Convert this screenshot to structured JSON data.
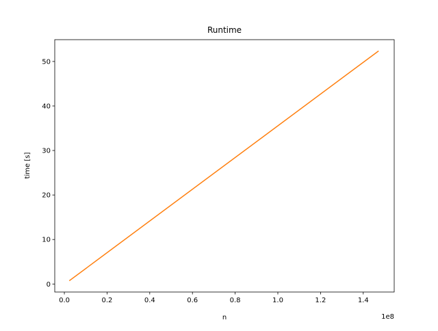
{
  "chart_data": {
    "type": "line",
    "title": "Runtime",
    "xlabel": "n",
    "ylabel": "time [s]",
    "x_offset_text": "1e8",
    "xlim": [
      -0.045,
      1.545
    ],
    "ylim": [
      -1.8,
      54.9
    ],
    "grid": false,
    "x_ticks": [
      0.0,
      0.2,
      0.4,
      0.6,
      0.8,
      1.0,
      1.2,
      1.4
    ],
    "x_tick_labels": [
      "0.0",
      "0.2",
      "0.4",
      "0.6",
      "0.8",
      "1.0",
      "1.2",
      "1.4"
    ],
    "y_ticks": [
      0,
      10,
      20,
      30,
      40,
      50
    ],
    "y_tick_labels": [
      "0",
      "10",
      "20",
      "30",
      "40",
      "50"
    ],
    "series": [
      {
        "name": "runtime",
        "color": "#ff7f0e",
        "x": [
          0.025,
          1.47
        ],
        "y": [
          0.8,
          52.3
        ]
      }
    ]
  }
}
